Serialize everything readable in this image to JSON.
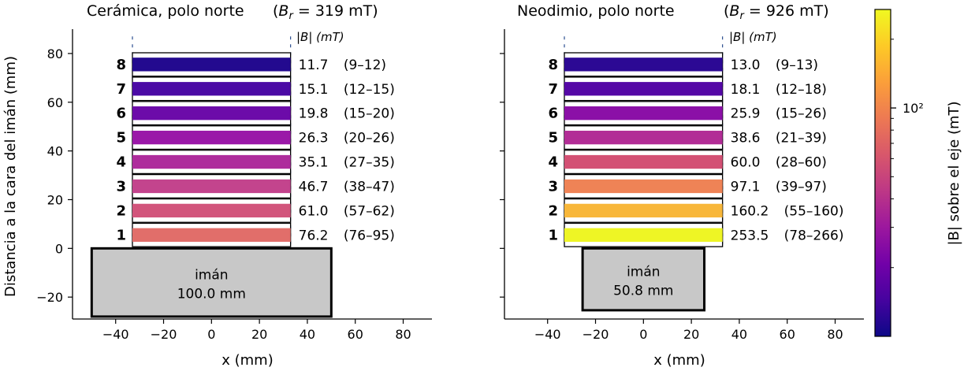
{
  "chart_data": [
    {
      "type": "bar",
      "title": "Cerámica, polo norte",
      "title_field": "(B_r = 319 mT)",
      "title_field_parts": {
        "symbol": "B",
        "sub": "r",
        "rest": " = 319 mT)",
        "open": "("
      },
      "column_label": "|B| (mT)",
      "ylabel": "Distancia a la cara del imán (mm)",
      "xlabel": "x (mm)",
      "xlim": [
        -58,
        92
      ],
      "ylim": [
        -29,
        90
      ],
      "xticks": [
        -40,
        -20,
        0,
        20,
        40,
        60,
        80
      ],
      "yticks": [
        -20,
        0,
        20,
        40,
        60,
        80
      ],
      "xtick_labels": [
        "−40",
        "−20",
        "0",
        "20",
        "40",
        "60",
        "80"
      ],
      "ytick_labels": [
        "−20",
        "0",
        "20",
        "40",
        "60",
        "80"
      ],
      "magnet": {
        "label": "imán",
        "size_label": "100.0 mm",
        "x": [
          -50,
          50
        ],
        "y": [
          -28,
          0
        ],
        "color": "#c8c8c8"
      },
      "sheet_x": [
        -33,
        33
      ],
      "layers": [
        {
          "index": "1",
          "y": 5.5,
          "value": 76.2,
          "value_text": "76.2",
          "range_text": "(76–95)",
          "color": "#e16e6a"
        },
        {
          "index": "2",
          "y": 15.5,
          "value": 61.0,
          "value_text": "61.0",
          "range_text": "(57–62)",
          "color": "#d2557c"
        },
        {
          "index": "3",
          "y": 25.5,
          "value": 46.7,
          "value_text": "46.7",
          "range_text": "(38–47)",
          "color": "#c3448d"
        },
        {
          "index": "4",
          "y": 35.5,
          "value": 35.1,
          "value_text": "35.1",
          "range_text": "(27–35)",
          "color": "#ae2c9c"
        },
        {
          "index": "5",
          "y": 45.5,
          "value": 26.3,
          "value_text": "26.3",
          "range_text": "(20–26)",
          "color": "#9a18a8"
        },
        {
          "index": "6",
          "y": 55.5,
          "value": 19.8,
          "value_text": "19.8",
          "range_text": "(15–20)",
          "color": "#6c0ba9"
        },
        {
          "index": "7",
          "y": 65.5,
          "value": 15.1,
          "value_text": "15.1",
          "range_text": "(12–15)",
          "color": "#4b0aa5"
        },
        {
          "index": "8",
          "y": 75.5,
          "value": 11.7,
          "value_text": "11.7",
          "range_text": "(9–12)",
          "color": "#230a8f"
        }
      ]
    },
    {
      "type": "bar",
      "title": "Neodimio, polo norte",
      "title_field": "(B_r = 926 mT)",
      "title_field_parts": {
        "symbol": "B",
        "sub": "r",
        "rest": " = 926 mT)",
        "open": "("
      },
      "column_label": "|B| (mT)",
      "ylabel": "",
      "xlabel": "x (mm)",
      "xlim": [
        -58,
        92
      ],
      "ylim": [
        -29,
        90
      ],
      "xticks": [
        -40,
        -20,
        0,
        20,
        40,
        60,
        80
      ],
      "yticks": [
        -20,
        0,
        20,
        40,
        60,
        80
      ],
      "xtick_labels": [
        "−40",
        "−20",
        "0",
        "20",
        "40",
        "60",
        "80"
      ],
      "ytick_labels": [],
      "magnet": {
        "label": "imán",
        "size_label": "50.8 mm",
        "x": [
          -25.4,
          25.4
        ],
        "y": [
          -25.4,
          0
        ],
        "color": "#c8c8c8"
      },
      "sheet_x": [
        -33,
        33
      ],
      "layers": [
        {
          "index": "1",
          "y": 5.5,
          "value": 253.5,
          "value_text": "253.5",
          "range_text": "(78–266)",
          "color": "#eef525"
        },
        {
          "index": "2",
          "y": 15.5,
          "value": 160.2,
          "value_text": "160.2",
          "range_text": "(55–160)",
          "color": "#f8b73a"
        },
        {
          "index": "3",
          "y": 25.5,
          "value": 97.1,
          "value_text": "97.1",
          "range_text": "(39–97)",
          "color": "#ef8356"
        },
        {
          "index": "4",
          "y": 35.5,
          "value": 60.0,
          "value_text": "60.0",
          "range_text": "(28–60)",
          "color": "#d35074"
        },
        {
          "index": "5",
          "y": 45.5,
          "value": 38.6,
          "value_text": "38.6",
          "range_text": "(21–39)",
          "color": "#b22d96"
        },
        {
          "index": "6",
          "y": 55.5,
          "value": 25.9,
          "value_text": "25.9",
          "range_text": "(15–26)",
          "color": "#8b10a7"
        },
        {
          "index": "7",
          "y": 65.5,
          "value": 18.1,
          "value_text": "18.1",
          "range_text": "(12–18)",
          "color": "#5508a6"
        },
        {
          "index": "8",
          "y": 75.5,
          "value": 13.0,
          "value_text": "13.0",
          "range_text": "(9–13)",
          "color": "#2c0994"
        }
      ]
    }
  ],
  "colorbar": {
    "label": "|B| sobre el eje (mT)",
    "scale": "log",
    "range": [
      10,
      270
    ],
    "major_tick": 100,
    "major_tick_label": "10²",
    "colormap": "plasma",
    "stops": [
      "#0d0887",
      "#46039f",
      "#7201a8",
      "#9c179e",
      "#bd3786",
      "#d8576b",
      "#ed7953",
      "#fb9f3a",
      "#fdca26",
      "#f0f921"
    ]
  }
}
